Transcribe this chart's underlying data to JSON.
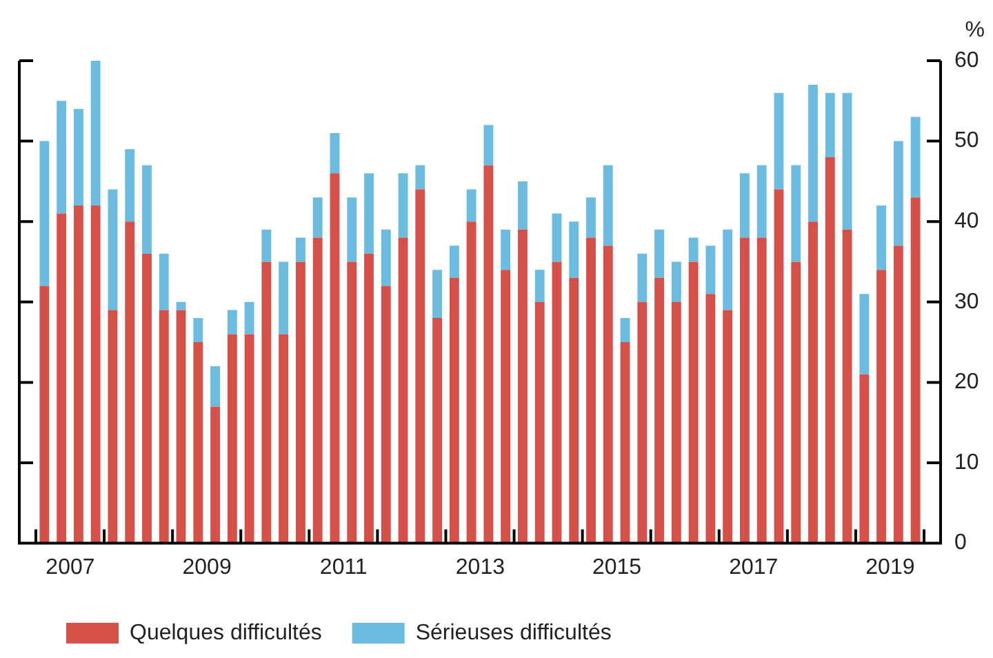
{
  "chart_data": {
    "type": "bar",
    "stacked": true,
    "ylabel": "%",
    "categories": [
      null,
      "2007",
      null,
      null,
      null,
      null,
      null,
      null,
      null,
      "2009",
      null,
      null,
      null,
      null,
      null,
      null,
      null,
      "2011",
      null,
      null,
      null,
      null,
      null,
      null,
      null,
      "2013",
      null,
      null,
      null,
      null,
      null,
      null,
      null,
      "2015",
      null,
      null,
      null,
      null,
      null,
      null,
      null,
      "2017",
      null,
      null,
      null,
      null,
      null,
      null,
      null,
      "2019",
      null,
      null
    ],
    "series": [
      {
        "name": "Quelques difficultés",
        "color": "#d6504a",
        "values": [
          32,
          41,
          42,
          42,
          29,
          40,
          36,
          29,
          29,
          25,
          17,
          26,
          26,
          35,
          26,
          35,
          38,
          46,
          35,
          36,
          32,
          38,
          44,
          28,
          33,
          40,
          47,
          34,
          39,
          30,
          35,
          33,
          38,
          37,
          25,
          30,
          33,
          30,
          35,
          31,
          29,
          38,
          38,
          44,
          35,
          40,
          48,
          39,
          21,
          34,
          37,
          43
        ]
      },
      {
        "name": "Sérieuses difficultés",
        "color": "#6cbbe0",
        "values": [
          18,
          14,
          12,
          18,
          15,
          9,
          11,
          7,
          1,
          3,
          5,
          3,
          4,
          4,
          9,
          3,
          5,
          5,
          8,
          10,
          7,
          8,
          3,
          6,
          4,
          4,
          5,
          5,
          6,
          4,
          6,
          7,
          5,
          10,
          3,
          6,
          6,
          5,
          3,
          6,
          10,
          8,
          9,
          12,
          12,
          17,
          8,
          17,
          10,
          8,
          13,
          10
        ]
      }
    ],
    "ylim": [
      0,
      60
    ],
    "yticks": [
      0,
      10,
      20,
      30,
      40,
      50,
      60
    ],
    "grid": false,
    "legend": "bottom"
  }
}
